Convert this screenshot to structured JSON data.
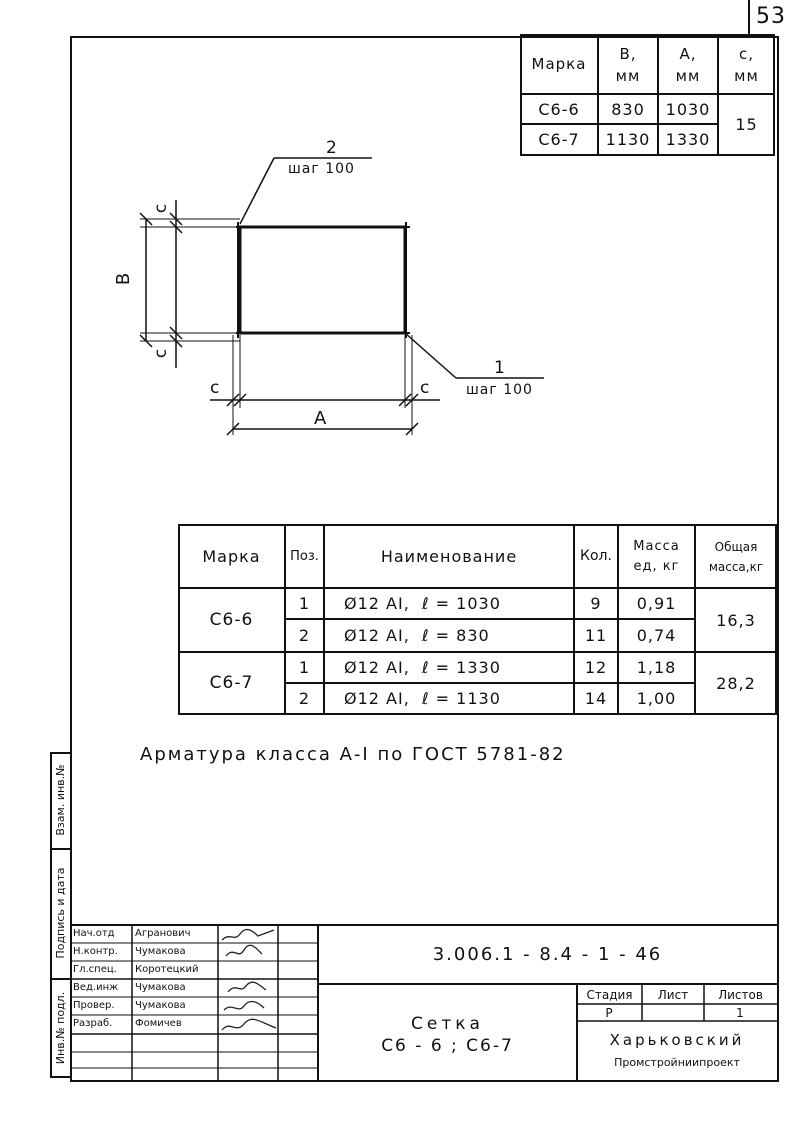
{
  "page_number": "53",
  "dims_table": {
    "headers": {
      "mark": "Марка",
      "b": "B, мм",
      "a": "A, мм",
      "c": "c, мм"
    },
    "rows": [
      {
        "mark": "С6-6",
        "b": "830",
        "a": "1030"
      },
      {
        "mark": "С6-7",
        "b": "1130",
        "a": "1330"
      }
    ],
    "c_value": "15"
  },
  "drawing": {
    "pos2_num": "2",
    "pos2_step": "шаг 100",
    "pos1_num": "1",
    "pos1_step": "шаг 100",
    "label_b": "B",
    "label_a": "A",
    "label_c": "c"
  },
  "spec_table": {
    "headers": {
      "mark": "Марка",
      "pos": "Поз.",
      "name": "Наименование",
      "qty": "Кол.",
      "mass": "Масса ед, кг",
      "total": "Общая масса,кг"
    },
    "groups": [
      {
        "mark": "С6-6",
        "total": "16,3",
        "rows": [
          {
            "pos": "1",
            "name": "Ø12 AI,  ℓ = 1030",
            "qty": "9",
            "mass": "0,91"
          },
          {
            "pos": "2",
            "name": "Ø12 AI,  ℓ = 830",
            "qty": "11",
            "mass": "0,74"
          }
        ]
      },
      {
        "mark": "С6-7",
        "total": "28,2",
        "rows": [
          {
            "pos": "1",
            "name": "Ø12 AI,  ℓ = 1330",
            "qty": "12",
            "mass": "1,18"
          },
          {
            "pos": "2",
            "name": "Ø12 AI,  ℓ = 1130",
            "qty": "14",
            "mass": "1,00"
          }
        ]
      }
    ]
  },
  "note": "Арматура класса А-I по ГОСТ 5781-82",
  "side_labels": {
    "inv_vzam": "Взам. инв.№",
    "sign_date": "Подпись и дата",
    "inv_orig": "Инв.№ подл."
  },
  "title_block": {
    "roles": [
      {
        "role": "Нач.отд",
        "name": "Агранович"
      },
      {
        "role": "Н.контр.",
        "name": "Чумакова"
      },
      {
        "role": "Гл.спец.",
        "name": "Коротецкий"
      },
      {
        "role": "Вед.инж",
        "name": "Чумакова"
      },
      {
        "role": "Провер.",
        "name": "Чумакова"
      },
      {
        "role": "Разраб.",
        "name": "Фомичев"
      }
    ],
    "doc_code": "3.006.1 - 8.4 - 1 - 46",
    "title_line1": "Сетка",
    "title_line2": "С6 - 6 ; С6-7",
    "stage_label": "Стадия",
    "sheet_label": "Лист",
    "sheets_label": "Листов",
    "stage_value": "Р",
    "sheets_value": "1",
    "org_line1": "Харьковский",
    "org_line2": "Промстройниипроект"
  }
}
